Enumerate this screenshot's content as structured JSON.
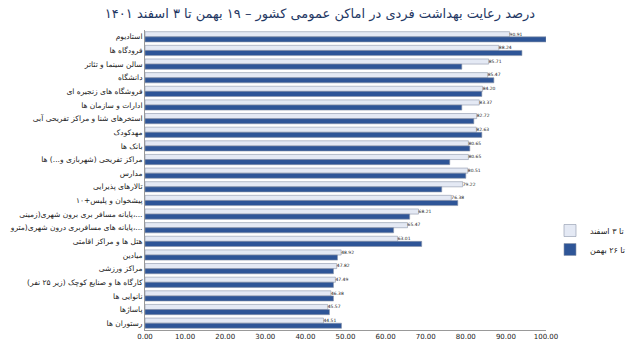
{
  "chart_data": {
    "type": "bar",
    "orientation": "horizontal",
    "title": "درصد رعایت بهداشت فردی در اماکن عمومی کشور – ۱۹ بهمن تا ۳ اسفند ۱۴۰۱",
    "categories": [
      "استادیوم",
      "فرودگاه ها",
      "سالن سینما و تئاتر",
      "دانشگاه",
      "فروشگاه های زنجیره ای",
      "ادارات و سازمان ها",
      "استخرهای شنا و مراکز تفریحی آبی",
      "مهدکودک",
      "بانک ها",
      "مراکز تفریحی (شهربازی و...) ها",
      "مدارس",
      "تالارهای پذیرایی",
      "پیشخوان و پلیس+۱۰",
      "پایانه مسافر بری برون شهری(زمینی،...",
      "پایانه های مسافربری درون شهری(مترو،...",
      "هتل ها و مراکز اقامتی",
      "میادین",
      "مراکز ورزشی",
      "کارگاه ها و صنایع کوچک (زیر ۲۵ نفر)",
      "نانوایی ها",
      "پاساژها",
      "رستوران ها"
    ],
    "series": [
      {
        "name": "تا ۳ اسفند",
        "color": "#e4e9f4",
        "data_labels": true,
        "values": [
          90.91,
          88.24,
          85.71,
          85.47,
          84.2,
          83.37,
          82.72,
          82.63,
          80.65,
          80.65,
          80.51,
          79.22,
          76.38,
          68.21,
          65.47,
          63.01,
          48.92,
          47.82,
          47.49,
          46.38,
          45.57,
          44.51
        ],
        "value_labels": [
          "90.91",
          "88.24",
          "85.71",
          "85.47",
          "84.20",
          "83.37",
          "82.72",
          "82.63",
          "80.65",
          "80.65",
          "80.51",
          "79.22",
          "76.38",
          "68.21",
          "65.47",
          "63.01",
          "48.92",
          "47.82",
          "47.49",
          "46.38",
          "45.57",
          "44.51"
        ]
      },
      {
        "name": "تا ۲۶ بهمن",
        "color": "#2e5597",
        "values": [
          100,
          94,
          79,
          87,
          84,
          79,
          82,
          84,
          81,
          76,
          80,
          74,
          78,
          66,
          62,
          69,
          48,
          47,
          47,
          47,
          46,
          49
        ]
      }
    ],
    "xlim": [
      0,
      100
    ],
    "xticks": [
      {
        "value": 0,
        "label": "0.00"
      },
      {
        "value": 10,
        "label": "10.00"
      },
      {
        "value": 20,
        "label": "20.00"
      },
      {
        "value": 30,
        "label": "30.00"
      },
      {
        "value": 40,
        "label": "40.00"
      },
      {
        "value": 50,
        "label": "50.00"
      },
      {
        "value": 60,
        "label": "60.00"
      },
      {
        "value": 70,
        "label": "70.00"
      },
      {
        "value": 80,
        "label": "80.00"
      },
      {
        "value": 90,
        "label": "90.00"
      },
      {
        "value": 100,
        "label": "100.00"
      }
    ],
    "grid": false,
    "legend": "right"
  }
}
